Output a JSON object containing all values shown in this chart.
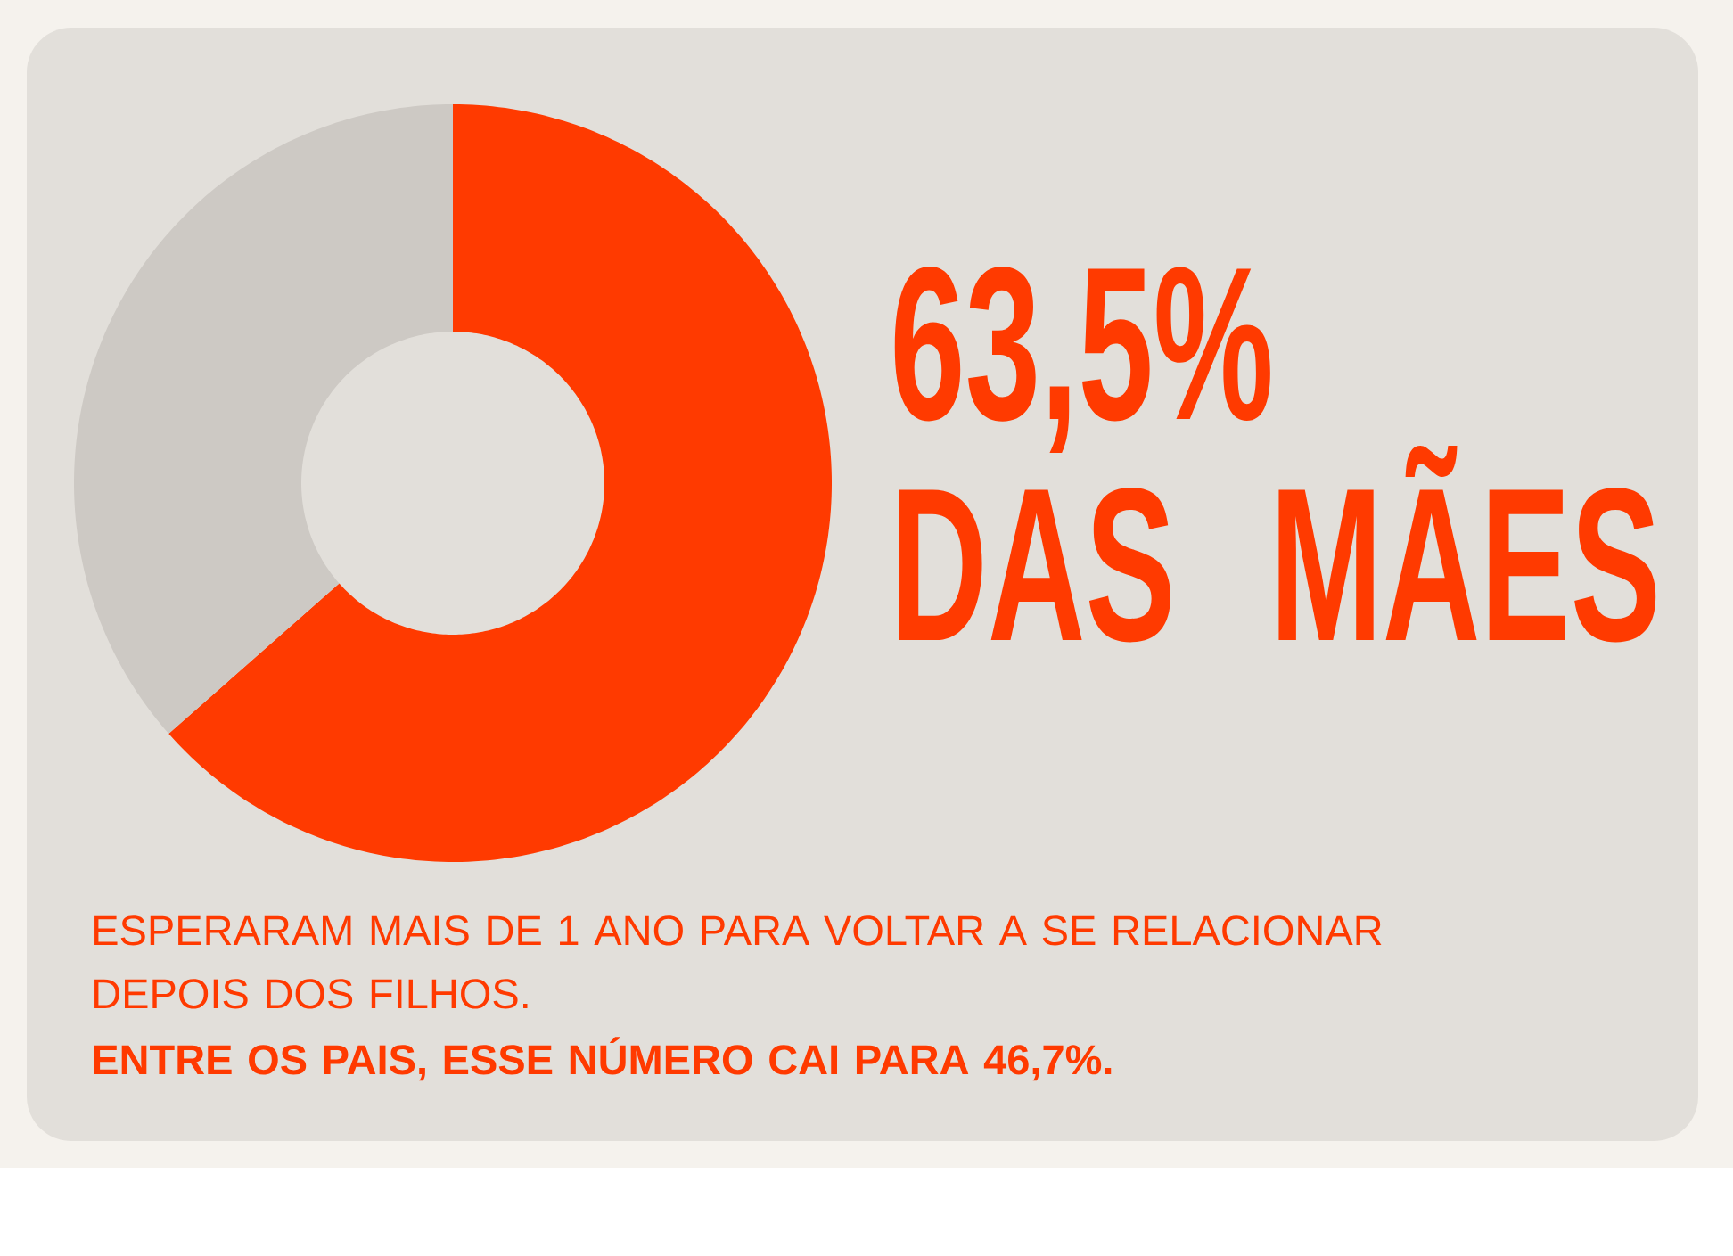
{
  "chart_data": {
    "type": "donut",
    "title": "63,5%",
    "subtitle": "DAS MÃES",
    "categories": [
      null,
      null
    ],
    "values": [
      63.5,
      36.5
    ],
    "colors": [
      "#ff3a00",
      "#cdc9c4"
    ],
    "annotations": [
      "ESPERARAM MAIS DE 1 ANO PARA VOLTAR A SE RELACIONAR DEPOIS DOS FILHOS.",
      "ENTRE OS PAIS, ESSE NÚMERO CAI PARA 46,7%."
    ]
  }
}
